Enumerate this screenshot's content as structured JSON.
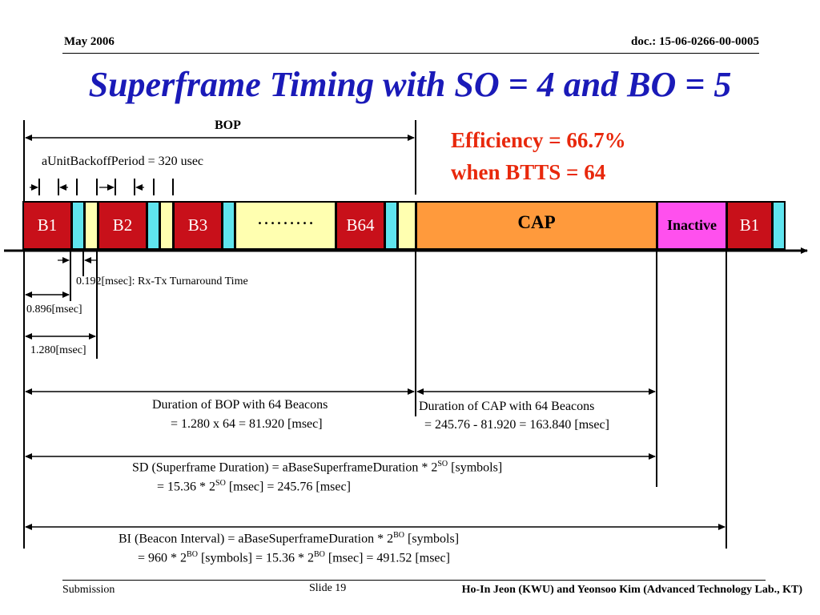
{
  "header": {
    "date": "May 2006",
    "doc": "doc.: 15-06-0266-00-0005"
  },
  "title": "Superframe Timing with SO = 4 and BO = 5",
  "efficiency": {
    "line1": "Efficiency = 66.7%",
    "line2": "when BTTS = 64"
  },
  "bop_label": "BOP",
  "backoff_label": "aUnitBackoffPeriod = 320 usec",
  "blocks": {
    "b1": "B1",
    "b2": "B2",
    "b3": "B3",
    "dots": "………",
    "b64": "B64",
    "cap": "CAP",
    "inactive": "Inactive",
    "b1_end": "B1"
  },
  "timing": {
    "turnaround": "0.192[msec]: Rx-Tx Turnaround Time",
    "t1": "0.896[msec]",
    "t2": "1.280[msec]"
  },
  "bop_duration": {
    "line1": "Duration of BOP with 64 Beacons",
    "line2": "= 1.280 x 64 = 81.920 [msec]"
  },
  "cap_duration": {
    "line1": "Duration of CAP with 64 Beacons",
    "line2": "= 245.76 - 81.920 = 163.840 [msec]"
  },
  "sd": {
    "l1a": "SD (Superframe Duration) =  aBaseSuperframeDuration * 2",
    "l1sup": "SO",
    "l1b": " [symbols]",
    "l2a": "= 15.36 * 2",
    "l2sup": "SO",
    "l2b": " [msec] = 245.76 [msec]"
  },
  "bi": {
    "l1a": "BI (Beacon Interval) = aBaseSuperframeDuration * 2",
    "l1sup": "BO",
    "l1b": " [symbols]",
    "l2a": "= 960 * 2",
    "l2sup": "BO",
    "l2b": " [symbols] = 15.36 * 2",
    "l2sup2": "BO",
    "l2c": " [msec] = 491.52 [msec]"
  },
  "footer": {
    "submission": "Submission",
    "slide": "Slide 19",
    "authors": "Ho-In Jeon (KWU) and Yeonsoo Kim (Advanced Technology Lab., KT)"
  }
}
